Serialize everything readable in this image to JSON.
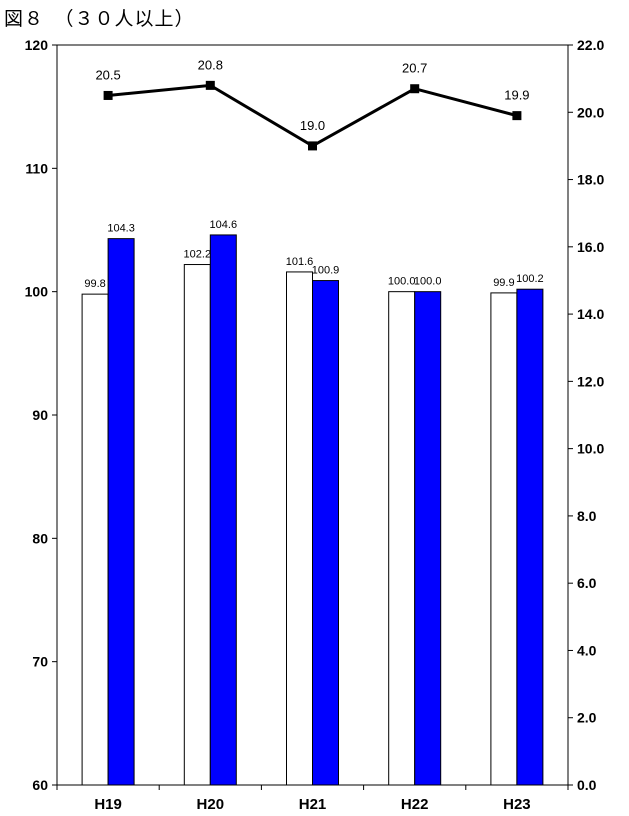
{
  "chart_data": {
    "type": "bar",
    "title": "図８　（３０人以上）",
    "categories": [
      "H19",
      "H20",
      "H21",
      "H22",
      "H23"
    ],
    "series": [
      {
        "kind": "bar",
        "axis": "left",
        "color": "#ffffff",
        "stroke": "#000000",
        "values": [
          99.8,
          102.2,
          101.6,
          100.0,
          99.9
        ],
        "labels": [
          "99.8",
          "102.2",
          "101.6",
          "100.0",
          "99.9"
        ]
      },
      {
        "kind": "bar",
        "axis": "left",
        "color": "#0000ff",
        "stroke": "#000000",
        "values": [
          104.3,
          104.6,
          100.9,
          100.0,
          100.2
        ],
        "labels": [
          "104.3",
          "104.6",
          "100.9",
          "100.0",
          "100.2"
        ]
      },
      {
        "kind": "line",
        "axis": "right",
        "color": "#000000",
        "marker": "square",
        "values": [
          20.5,
          20.8,
          19.0,
          20.7,
          19.9
        ],
        "labels": [
          "20.5",
          "20.8",
          "19.0",
          "20.7",
          "19.9"
        ]
      }
    ],
    "y_left": {
      "range": [
        60,
        120
      ],
      "ticks": [
        {
          "v": 60,
          "label": "60"
        },
        {
          "v": 70,
          "label": "70"
        },
        {
          "v": 80,
          "label": "80"
        },
        {
          "v": 90,
          "label": "90"
        },
        {
          "v": 100,
          "label": "100"
        },
        {
          "v": 110,
          "label": "110"
        },
        {
          "v": 120,
          "label": "120"
        }
      ]
    },
    "y_right": {
      "range": [
        0,
        22
      ],
      "ticks": [
        {
          "v": 0,
          "label": "0.0"
        },
        {
          "v": 2,
          "label": "2.0"
        },
        {
          "v": 4,
          "label": "4.0"
        },
        {
          "v": 6,
          "label": "6.0"
        },
        {
          "v": 8,
          "label": "8.0"
        },
        {
          "v": 10,
          "label": "10.0"
        },
        {
          "v": 12,
          "label": "12.0"
        },
        {
          "v": 14,
          "label": "14.0"
        },
        {
          "v": 16,
          "label": "16.0"
        },
        {
          "v": 18,
          "label": "18.0"
        },
        {
          "v": 20,
          "label": "20.0"
        },
        {
          "v": 22,
          "label": "22.0"
        }
      ]
    },
    "grid": false,
    "legend": "none"
  }
}
